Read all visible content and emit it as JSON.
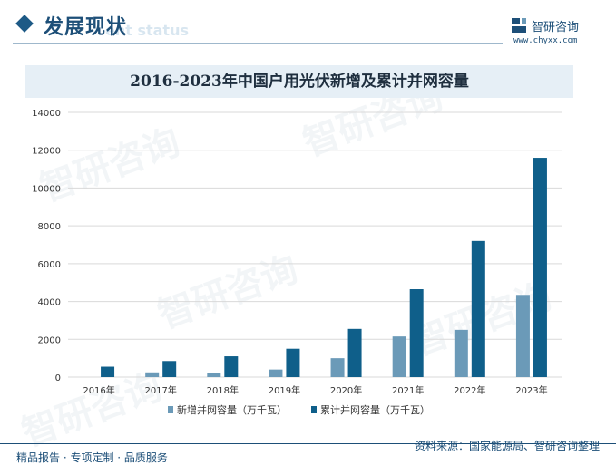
{
  "header": {
    "section_title": "发展现状",
    "section_subtitle": "ent status",
    "brand_name": "智研咨询",
    "brand_url": "www.chyxx.com"
  },
  "footer": {
    "left_text": "精品报告 · 专项定制 · 品质服务",
    "right_text": "资料来源：国家能源局、智研咨询整理"
  },
  "watermark_text": "智研咨询",
  "colors": {
    "series_new": "#6b9ab8",
    "series_total": "#0f5f8a",
    "accent": "#1d4f78"
  },
  "chart_data": {
    "type": "bar",
    "title": "2016-2023年中国户用光伏新增及累计并网容量",
    "categories": [
      "2016年",
      "2017年",
      "2018年",
      "2019年",
      "2020年",
      "2021年",
      "2022年",
      "2023年"
    ],
    "series": [
      {
        "name": "新增并网容量（万千瓦）",
        "values": [
          0,
          250,
          200,
          400,
          1000,
          2150,
          2500,
          4350
        ]
      },
      {
        "name": "累计并网容量（万千瓦）",
        "values": [
          550,
          850,
          1100,
          1500,
          2550,
          4650,
          7200,
          11600
        ]
      }
    ],
    "yticks": [
      0,
      2000,
      4000,
      6000,
      8000,
      10000,
      12000,
      14000
    ],
    "ylim": [
      0,
      14000
    ],
    "grid": true,
    "legend_position": "bottom"
  }
}
